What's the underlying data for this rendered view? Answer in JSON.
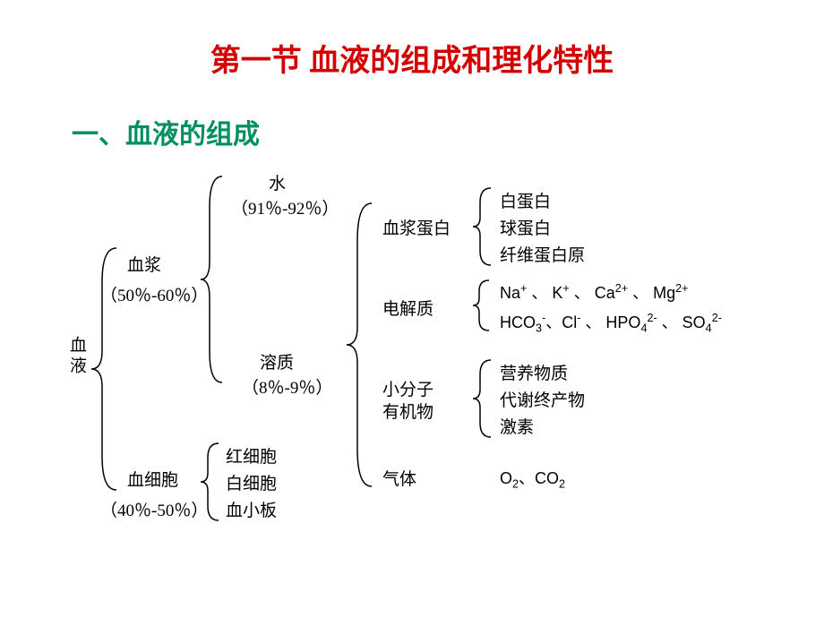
{
  "title": {
    "text": "第一节  血液的组成和理化特性",
    "color": "#d40000",
    "fontsize": 34
  },
  "section": {
    "text": "一、血液的组成",
    "color": "#009060",
    "fontsize": 30
  },
  "root": {
    "label": "血液"
  },
  "plasma": {
    "label": "血浆",
    "pct": "（50％-60％）"
  },
  "cells": {
    "label": "血细胞",
    "pct": "（40％-50％）"
  },
  "water": {
    "label": "水",
    "pct": "（91％-92％）"
  },
  "solute": {
    "label": "溶质",
    "pct": "（8％-9％）"
  },
  "cell_types": {
    "a": "红细胞",
    "b": "白细胞",
    "c": "血小板"
  },
  "solute_groups": {
    "plasma_protein": {
      "label": "血浆蛋白"
    },
    "electrolyte": {
      "label": "电解质"
    },
    "small_organic": {
      "line1": "小分子",
      "line2": "有机物"
    },
    "gas": {
      "label": "气体"
    }
  },
  "plasma_proteins": {
    "a": "白蛋白",
    "b": "球蛋白",
    "c": "纤维蛋白原"
  },
  "electrolytes": {
    "cations_html": "Na<sup>+</sup> 、 K<sup>+</sup> 、 Ca<sup>2+</sup> 、 Mg<sup>2+</sup>",
    "anions_html": "HCO<sub>3</sub><sup>-</sup>、Cl<sup>-</sup> 、 HPO<sub>4</sub><sup>2-</sup> 、 SO<sub>4</sub><sup>2-</sup>"
  },
  "small_organics": {
    "a": "营养物质",
    "b": "代谢终产物",
    "c": "激素"
  },
  "gases": {
    "html": "O<sub>2</sub>、CO<sub>2</sub>"
  },
  "colors": {
    "text": "#000000",
    "brace": "#000000"
  }
}
